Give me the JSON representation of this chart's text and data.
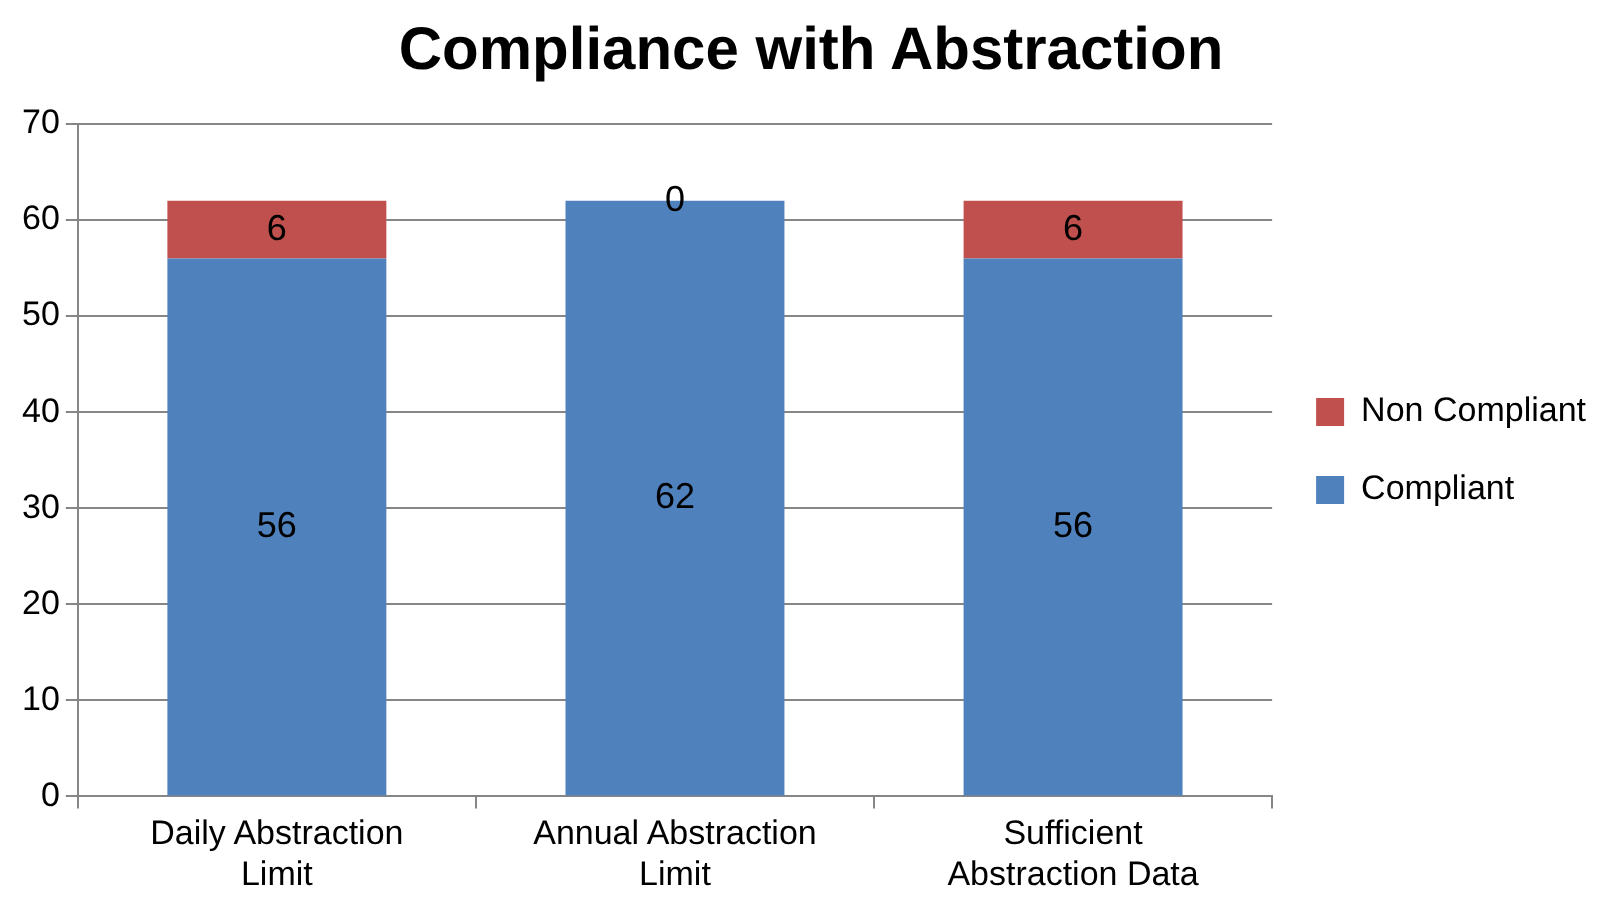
{
  "chart_data": {
    "type": "bar",
    "title": "Compliance with Abstraction",
    "categories": [
      "Daily Abstraction Limit",
      "Annual Abstraction Limit",
      "Sufficient Abstraction Data"
    ],
    "series": [
      {
        "name": "Compliant",
        "color": "#4f81bd",
        "values": [
          56,
          62,
          56
        ]
      },
      {
        "name": "Non Compliant",
        "color": "#c0504d",
        "values": [
          6,
          0,
          6
        ]
      }
    ],
    "stacked": true,
    "ylim": [
      0,
      70
    ],
    "yticks": [
      0,
      10,
      20,
      30,
      40,
      50,
      60,
      70
    ],
    "grid": "y",
    "legend": "right",
    "data_labels": true
  }
}
